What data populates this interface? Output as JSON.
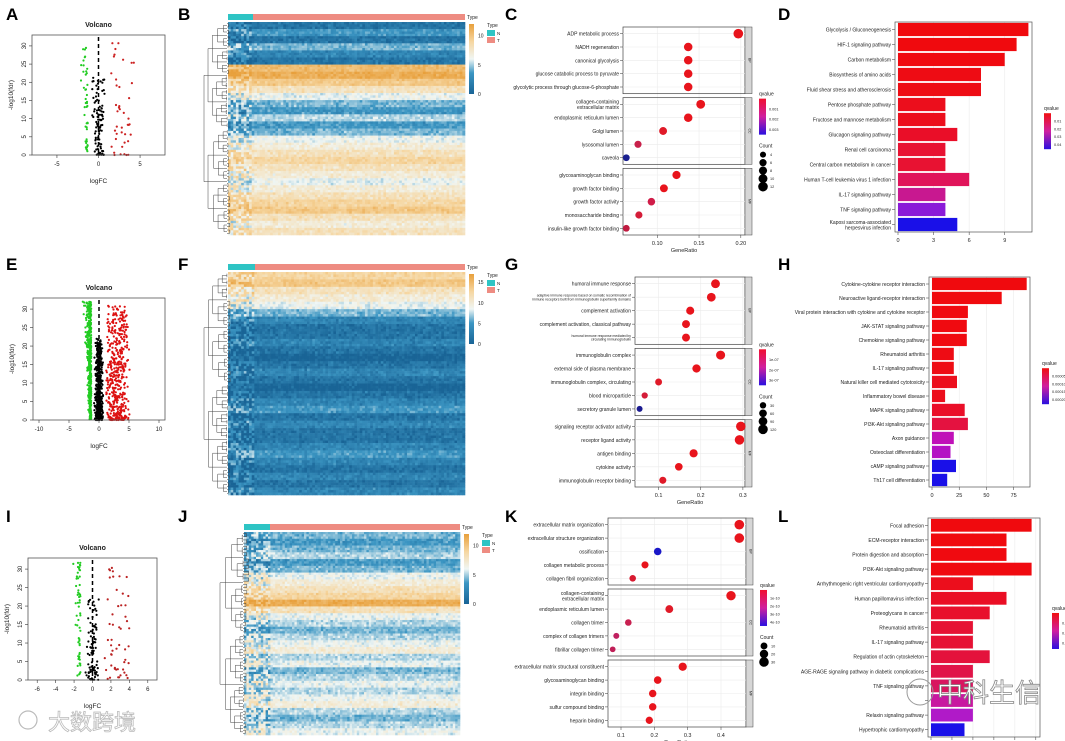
{
  "panel_letters": [
    "A",
    "B",
    "C",
    "D",
    "E",
    "F",
    "G",
    "H",
    "I",
    "J",
    "K",
    "L"
  ],
  "watermarks": {
    "left": "大数跨境",
    "right": "中科生信"
  },
  "chart_data": [
    {
      "id": "A",
      "type": "scatter",
      "title": "Volcano",
      "xlabel": "logFC",
      "ylabel": "-log10(fdr)",
      "xlim": [
        -8,
        8
      ],
      "ylim": [
        0,
        33
      ],
      "xticks": [
        -5,
        0,
        5
      ],
      "yticks": [
        0,
        5,
        10,
        15,
        20,
        25,
        30
      ],
      "colors": {
        "down": "#22cc22",
        "up": "#cc2222",
        "ns": "#000000"
      }
    },
    {
      "id": "B",
      "type": "heatmap",
      "annotation_title": "Type",
      "legend_title": "Type",
      "groups": [
        {
          "label": "N",
          "color": "#2ec4c4"
        },
        {
          "label": "T",
          "color": "#ee8c82"
        }
      ],
      "scale_ticks": [
        0,
        5,
        10
      ],
      "row_levels": [
        1,
        3,
        1,
        4,
        2,
        1,
        11,
        12,
        10,
        8,
        6,
        4,
        3,
        5,
        3,
        4,
        6,
        7,
        8,
        9,
        8,
        7,
        6,
        7,
        8,
        9,
        10,
        8,
        7,
        8
      ]
    },
    {
      "id": "C",
      "type": "scatter",
      "xlabel": "GeneRatio",
      "xlim": [
        0.059,
        0.205
      ],
      "xticks": [
        "0.10",
        "0.15",
        "0.20"
      ],
      "legend_color_title": "qvalue",
      "legend_color_ticks": [
        "0.001",
        "0.002",
        "0.003"
      ],
      "legend_size_title": "Count",
      "legend_size_ticks": [
        "4",
        "6",
        "8",
        "10",
        "12"
      ],
      "facets": [
        {
          "name": "BP",
          "terms": [
            {
              "label": "ADP metabolic process",
              "ratio": 0.197,
              "count": 13,
              "color": "#e8141c"
            },
            {
              "label": "NADH regeneration",
              "ratio": 0.137,
              "count": 9,
              "color": "#e8141c"
            },
            {
              "label": "canonical glycolysis",
              "ratio": 0.137,
              "count": 9,
              "color": "#e8141c"
            },
            {
              "label": "glucose catabolic process to pyruvate",
              "ratio": 0.137,
              "count": 9,
              "color": "#e8141c"
            },
            {
              "label": "glycolytic process through glucose-6-phosphate",
              "ratio": 0.137,
              "count": 9,
              "color": "#e8141c"
            }
          ]
        },
        {
          "name": "CC",
          "terms": [
            {
              "label": "collagen-containing\nextracellular matrix",
              "ratio": 0.152,
              "count": 10,
              "color": "#e8141c"
            },
            {
              "label": "endoplasmic reticulum lumen",
              "ratio": 0.137,
              "count": 9,
              "color": "#e8141c"
            },
            {
              "label": "Golgi lumen",
              "ratio": 0.107,
              "count": 7,
              "color": "#e01a28"
            },
            {
              "label": "lysosomal lumen",
              "ratio": 0.077,
              "count": 5,
              "color": "#c8204a"
            },
            {
              "label": "caveola",
              "ratio": 0.063,
              "count": 4,
              "color": "#1a2090"
            }
          ]
        },
        {
          "name": "MF",
          "terms": [
            {
              "label": "glycosaminoglycan binding",
              "ratio": 0.123,
              "count": 8,
              "color": "#e8141c"
            },
            {
              "label": "growth factor binding",
              "ratio": 0.108,
              "count": 7,
              "color": "#e8141c"
            },
            {
              "label": "growth factor activity",
              "ratio": 0.093,
              "count": 6,
              "color": "#d01c48"
            },
            {
              "label": "monosaccharide binding",
              "ratio": 0.078,
              "count": 5,
              "color": "#d41c38"
            },
            {
              "label": "insulin-like growth factor binding",
              "ratio": 0.063,
              "count": 4,
              "color": "#c01a40"
            }
          ]
        }
      ]
    },
    {
      "id": "D",
      "type": "bar",
      "xlim": [
        0,
        11.3
      ],
      "xticks": [
        0,
        3,
        6,
        9
      ],
      "legend_title": "qvalue",
      "legend_ticks": [
        "0.01",
        "0.02",
        "0.03",
        "0.04"
      ],
      "categories": [
        "Glycolysis / Gluconeogenesis",
        "HIF-1 signaling pathway",
        "Carbon metabolism",
        "Biosynthesis of amino acids",
        "Fluid shear stress and atherosclerosis",
        "Pentose phosphate pathway",
        "Fructose and mannose metabolism",
        "Glucagon signaling pathway",
        "Renal cell carcinoma",
        "Central carbon metabolism in cancer",
        "Human T-cell leukemia virus 1 infection",
        "IL-17 signaling pathway",
        "TNF signaling pathway",
        "Kaposi sarcoma-associated\nherpesvirus infection"
      ],
      "values": [
        11,
        10,
        9,
        7,
        7,
        4,
        4,
        5,
        4,
        4,
        6,
        4,
        4,
        5
      ],
      "colors": [
        "#f00a0e",
        "#f00a0e",
        "#f00a10",
        "#ee0c14",
        "#ee0c14",
        "#ec0e1c",
        "#ec0e1c",
        "#ea0e28",
        "#e81232",
        "#e81232",
        "#e0145a",
        "#c81890",
        "#8a1ad8",
        "#1a10e8"
      ]
    },
    {
      "id": "E",
      "type": "scatter",
      "title": "Volcano",
      "xlabel": "logFC",
      "ylabel": "-log10(fdr)",
      "xlim": [
        -11,
        11
      ],
      "ylim": [
        0,
        33
      ],
      "xticks": [
        -10,
        -5,
        0,
        5,
        10
      ],
      "yticks": [
        0,
        5,
        10,
        15,
        20,
        25,
        30
      ],
      "colors": {
        "down": "#22cc22",
        "up": "#dd1111",
        "ns": "#000000"
      }
    },
    {
      "id": "F",
      "type": "heatmap",
      "annotation_title": "Type",
      "legend_title": "Type",
      "groups": [
        {
          "label": "N",
          "color": "#2ec4c4"
        },
        {
          "label": "T",
          "color": "#ee8c82"
        }
      ],
      "scale_ticks": [
        0,
        5,
        10,
        15
      ],
      "row_levels": [
        9,
        10,
        8,
        7,
        6,
        4,
        2,
        1,
        1,
        2,
        1,
        0,
        1,
        2,
        1,
        0,
        1,
        2,
        3,
        1,
        2,
        1,
        1,
        2,
        3,
        2,
        1,
        2,
        1,
        2
      ]
    },
    {
      "id": "G",
      "type": "scatter",
      "xlabel": "GeneRatio",
      "xlim": [
        0.044,
        0.305
      ],
      "xticks": [
        "0.1",
        "0.2",
        "0.3"
      ],
      "legend_color_title": "qvalue",
      "legend_color_ticks": [
        "1e-07",
        "2e-07",
        "3e-07"
      ],
      "legend_size_title": "Count",
      "legend_size_ticks": [
        "30",
        "60",
        "90",
        "120"
      ],
      "facets": [
        {
          "name": "BP",
          "terms": [
            {
              "label": "humoral immune response",
              "ratio": 0.235,
              "count": 94,
              "color": "#e8141c"
            },
            {
              "label": "adaptive immune response based on somatic recombination of\nimmune receptors built from immunoglobulin superfamily domains",
              "ratio": 0.225,
              "count": 90,
              "color": "#e8141c"
            },
            {
              "label": "complement activation",
              "ratio": 0.175,
              "count": 70,
              "color": "#e8141c"
            },
            {
              "label": "complement activation, classical pathway",
              "ratio": 0.165,
              "count": 66,
              "color": "#e8141c"
            },
            {
              "label": "humoral immune response mediated by\ncirculating immunoglobulin",
              "ratio": 0.165,
              "count": 66,
              "color": "#e8141c"
            }
          ]
        },
        {
          "name": "CC",
          "terms": [
            {
              "label": "immunoglobulin complex",
              "ratio": 0.247,
              "count": 99,
              "color": "#e8141c"
            },
            {
              "label": "external side of plasma membrane",
              "ratio": 0.19,
              "count": 76,
              "color": "#e8141c"
            },
            {
              "label": "immunoglobulin complex, circulating",
              "ratio": 0.1,
              "count": 40,
              "color": "#e01a28"
            },
            {
              "label": "blood microparticle",
              "ratio": 0.067,
              "count": 27,
              "color": "#d41c38"
            },
            {
              "label": "secretory granule lumen",
              "ratio": 0.055,
              "count": 22,
              "color": "#1a1a90"
            }
          ]
        },
        {
          "name": "MF",
          "terms": [
            {
              "label": "signaling receptor activator activity",
              "ratio": 0.295,
              "count": 118,
              "color": "#e8141c"
            },
            {
              "label": "receptor ligand activity",
              "ratio": 0.292,
              "count": 117,
              "color": "#e8141c"
            },
            {
              "label": "antigen binding",
              "ratio": 0.183,
              "count": 73,
              "color": "#e8141c"
            },
            {
              "label": "cytokine activity",
              "ratio": 0.148,
              "count": 59,
              "color": "#e8141c"
            },
            {
              "label": "immunoglobulin receptor binding",
              "ratio": 0.11,
              "count": 44,
              "color": "#e01a28"
            }
          ]
        }
      ]
    },
    {
      "id": "H",
      "type": "bar",
      "xlim": [
        0,
        90
      ],
      "xticks": [
        0,
        25,
        50,
        75
      ],
      "legend_title": "qvalue",
      "legend_ticks": [
        "0.00005",
        "0.00010",
        "0.00015",
        "0.00020"
      ],
      "categories": [
        "Cytokine-cytokine receptor interaction",
        "Neuroactive ligand-receptor interaction",
        "Viral protein interaction with cytokine and cytokine receptor",
        "JAK-STAT signaling pathway",
        "Chemokine signaling pathway",
        "Rheumatoid arthritis",
        "IL-17 signaling pathway",
        "Natural killer cell mediated cytotoxicity",
        "Inflammatory bowel disease",
        "MAPK signaling pathway",
        "PI3K-Akt signaling pathway",
        "Axon guidance",
        "Osteoclast differentiation",
        "cAMP signaling pathway",
        "Th17 cell differentiation"
      ],
      "values": [
        87,
        64,
        33,
        32,
        32,
        20,
        20,
        23,
        12,
        30,
        33,
        20,
        17,
        22,
        14
      ],
      "colors": [
        "#f00a0e",
        "#f00a0e",
        "#f00a10",
        "#f00a10",
        "#f00a10",
        "#ee0c14",
        "#ee0c14",
        "#ec0e1c",
        "#ec0e1c",
        "#ea0e28",
        "#e41240",
        "#c010b8",
        "#b412c4",
        "#1a10e8",
        "#1a10e8"
      ]
    },
    {
      "id": "I",
      "type": "scatter",
      "title": "Volcano",
      "xlabel": "logFC",
      "ylabel": "-log10(fdr)",
      "xlim": [
        -7,
        7
      ],
      "ylim": [
        0,
        33
      ],
      "xticks": [
        -6,
        -4,
        -2,
        0,
        2,
        4,
        6
      ],
      "yticks": [
        0,
        5,
        10,
        15,
        20,
        25,
        30
      ],
      "colors": {
        "down": "#22cc22",
        "up": "#bb2222",
        "ns": "#000000"
      }
    },
    {
      "id": "J",
      "type": "heatmap",
      "annotation_title": "Type",
      "legend_title": "Type",
      "groups": [
        {
          "label": "N",
          "color": "#2ec4c4"
        },
        {
          "label": "T",
          "color": "#ee8c82"
        }
      ],
      "scale_ticks": [
        0,
        5,
        10
      ],
      "row_levels": [
        4,
        3,
        4,
        5,
        3,
        4,
        6,
        7,
        8,
        9,
        12,
        8,
        6,
        5,
        4,
        5,
        6,
        7,
        5,
        6,
        4,
        5,
        6,
        5,
        6,
        7,
        5,
        4,
        5,
        6
      ]
    },
    {
      "id": "K",
      "type": "scatter",
      "xlabel": "GeneRatio",
      "xlim": [
        0.061,
        0.475
      ],
      "xticks": [
        "0.1",
        "0.2",
        "0.3",
        "0.4"
      ],
      "legend_color_title": "qvalue",
      "legend_color_ticks": [
        "1e-10",
        "2e-10",
        "3e-10",
        "4e-10"
      ],
      "legend_size_title": "Count",
      "legend_size_ticks": [
        "10",
        "20",
        "30"
      ],
      "facets": [
        {
          "name": "BP",
          "terms": [
            {
              "label": "extracellular matrix organization",
              "ratio": 0.455,
              "count": 32,
              "color": "#e8141c"
            },
            {
              "label": "extracellular structure organization",
              "ratio": 0.455,
              "count": 32,
              "color": "#e8141c"
            },
            {
              "label": "ossification",
              "ratio": 0.21,
              "count": 15,
              "color": "#1a18c8"
            },
            {
              "label": "collagen metabolic process",
              "ratio": 0.172,
              "count": 12,
              "color": "#e8141c"
            },
            {
              "label": "collagen fibril organization",
              "ratio": 0.135,
              "count": 9,
              "color": "#d81a30"
            }
          ]
        },
        {
          "name": "CC",
          "terms": [
            {
              "label": "collagen-containing\nextracellular matrix",
              "ratio": 0.43,
              "count": 30,
              "color": "#e8141c"
            },
            {
              "label": "endoplasmic reticulum lumen",
              "ratio": 0.245,
              "count": 17,
              "color": "#e01a28"
            },
            {
              "label": "collagen trimer",
              "ratio": 0.122,
              "count": 9,
              "color": "#c82050"
            },
            {
              "label": "complex of collagen trimers",
              "ratio": 0.086,
              "count": 6,
              "color": "#c02060"
            },
            {
              "label": "fibrillar collagen trimer",
              "ratio": 0.075,
              "count": 5,
              "color": "#c02058"
            }
          ]
        },
        {
          "name": "MF",
          "terms": [
            {
              "label": "extracellular matrix structural constituent",
              "ratio": 0.285,
              "count": 20,
              "color": "#e8141c"
            },
            {
              "label": "glycosaminoglycan binding",
              "ratio": 0.21,
              "count": 15,
              "color": "#e8141c"
            },
            {
              "label": "integrin binding",
              "ratio": 0.195,
              "count": 14,
              "color": "#e8141c"
            },
            {
              "label": "sulfur compound binding",
              "ratio": 0.195,
              "count": 14,
              "color": "#e8141c"
            },
            {
              "label": "heparin binding",
              "ratio": 0.185,
              "count": 13,
              "color": "#e8141c"
            }
          ]
        }
      ]
    },
    {
      "id": "L",
      "type": "bar",
      "xlim": [
        0,
        13
      ],
      "xticks": [
        "0.0",
        "2.5",
        "5.0",
        "7.5",
        "10.0",
        "12.5"
      ],
      "legend_title": "qvalue",
      "legend_ticks": [
        "0.004",
        "0.008",
        "0.012"
      ],
      "categories": [
        "Focal adhesion",
        "ECM-receptor interaction",
        "Protein digestion and absorption",
        "PI3K-Akt signaling pathway",
        "Arrhythmogenic right ventricular cardiomyopathy",
        "Human papillomavirus infection",
        "Proteoglycans in cancer",
        "Rheumatoid arthritis",
        "IL-17 signaling pathway",
        "Regulation of actin cytoskeleton",
        "AGE-RAGE signaling pathway in diabetic complications",
        "TNF signaling pathway",
        "",
        "Relaxin signaling pathway",
        "Hypertrophic cardiomyopathy"
      ],
      "values": [
        12,
        9,
        9,
        12,
        5,
        9,
        7,
        5,
        5,
        7,
        5,
        5,
        5,
        5,
        4
      ],
      "colors": [
        "#f00a0e",
        "#f00a0e",
        "#f00a10",
        "#f00a10",
        "#ec0e1c",
        "#ea0e24",
        "#e8102c",
        "#e61234",
        "#e61234",
        "#e4123c",
        "#e01448",
        "#d81660",
        "#c818a0",
        "#b01ac8",
        "#1a10e8"
      ]
    }
  ]
}
